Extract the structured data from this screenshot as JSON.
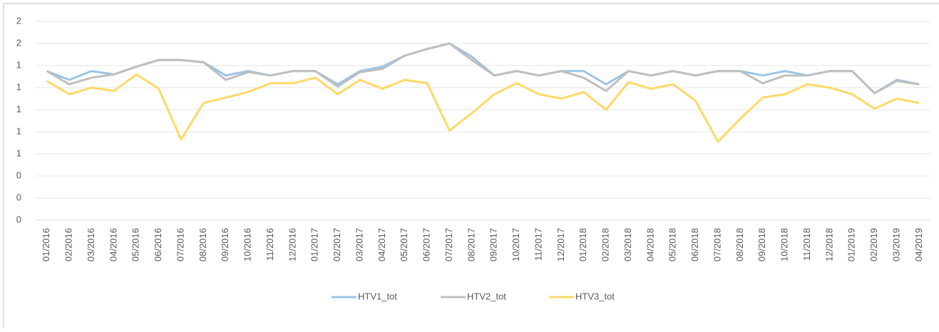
{
  "chart_data": {
    "type": "line",
    "categories": [
      "01/2016",
      "02/2016",
      "03/2016",
      "04/2016",
      "05/2016",
      "06/2016",
      "07/2016",
      "08/2016",
      "09/2016",
      "10/2016",
      "11/2016",
      "12/2016",
      "01/2017",
      "02/2017",
      "03/2017",
      "04/2017",
      "05/2017",
      "06/2017",
      "07/2017",
      "08/2017",
      "09/2017",
      "10/2017",
      "11/2017",
      "12/2017",
      "01/2018",
      "02/2018",
      "03/2018",
      "04/2018",
      "05/2018",
      "06/2018",
      "07/2018",
      "08/2018",
      "09/2018",
      "10/2018",
      "11/2018",
      "12/2018",
      "01/2019",
      "02/2019",
      "03/2019",
      "04/2019"
    ],
    "series": [
      {
        "name": "HTV1_tot",
        "color": "#9dc3e6",
        "values": [
          1.35,
          1.27,
          1.35,
          1.32,
          1.39,
          1.45,
          1.45,
          1.43,
          1.31,
          1.35,
          1.31,
          1.35,
          1.35,
          1.23,
          1.35,
          1.39,
          1.49,
          1.55,
          1.6,
          1.48,
          1.31,
          1.35,
          1.31,
          1.35,
          1.35,
          1.23,
          1.35,
          1.31,
          1.35,
          1.31,
          1.35,
          1.35,
          1.31,
          1.35,
          1.31,
          1.35,
          1.35,
          1.15,
          1.27,
          1.23
        ]
      },
      {
        "name": "HTV2_tot",
        "color": "#bfbfbf",
        "values": [
          1.35,
          1.23,
          1.29,
          1.32,
          1.39,
          1.45,
          1.45,
          1.43,
          1.27,
          1.34,
          1.31,
          1.35,
          1.35,
          1.21,
          1.34,
          1.37,
          1.49,
          1.55,
          1.6,
          1.45,
          1.31,
          1.35,
          1.31,
          1.35,
          1.29,
          1.17,
          1.35,
          1.31,
          1.35,
          1.31,
          1.35,
          1.35,
          1.24,
          1.31,
          1.31,
          1.35,
          1.35,
          1.15,
          1.26,
          1.23
        ]
      },
      {
        "name": "HTV3_tot",
        "color": "#ffd966",
        "values": [
          1.26,
          1.14,
          1.2,
          1.17,
          1.32,
          1.19,
          0.73,
          1.06,
          1.11,
          1.16,
          1.24,
          1.24,
          1.29,
          1.14,
          1.27,
          1.19,
          1.27,
          1.24,
          0.81,
          0.97,
          1.14,
          1.24,
          1.14,
          1.1,
          1.16,
          1.0,
          1.25,
          1.19,
          1.23,
          1.08,
          0.71,
          0.92,
          1.11,
          1.14,
          1.23,
          1.2,
          1.14,
          1.01,
          1.1,
          1.06
        ]
      }
    ],
    "ylim": [
      0,
      1.8
    ],
    "yticks": [
      0,
      {
        "value": 0.2,
        "label": "0"
      },
      {
        "value": 0.4,
        "label": "0"
      },
      {
        "value": 0.6,
        "label": "1"
      },
      {
        "value": 0.8,
        "label": "1"
      },
      1,
      {
        "value": 1.2,
        "label": "1"
      },
      {
        "value": 1.4,
        "label": "1"
      },
      {
        "value": 1.6,
        "label": "2"
      },
      {
        "value": 1.8,
        "label": "2"
      }
    ],
    "grid": true,
    "legend": "bottom"
  }
}
